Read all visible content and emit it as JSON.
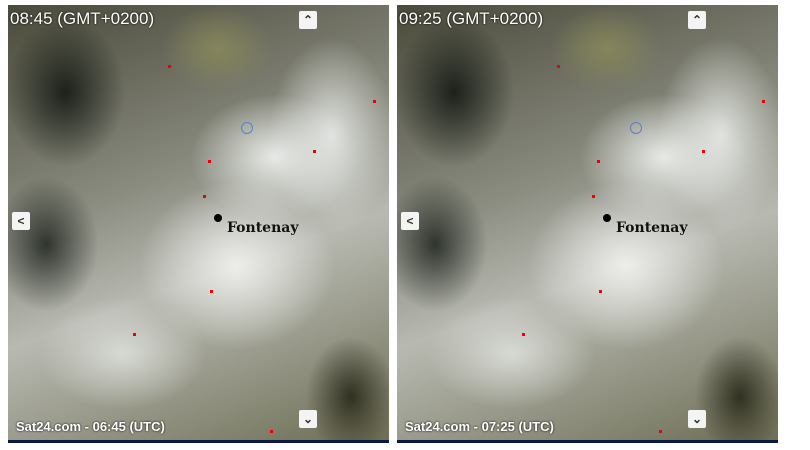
{
  "panels": [
    {
      "timestamp": "08:45 (GMT+0200)",
      "footer": "Sat24.com - 06:45 (UTC)",
      "city": "Fontenay"
    },
    {
      "timestamp": "09:25 (GMT+0200)",
      "footer": "Sat24.com - 07:25 (UTC)",
      "city": "Fontenay"
    }
  ],
  "icons": {
    "up": "chevron-up-icon",
    "down": "chevron-down-icon",
    "left": "chevron-left-icon"
  },
  "colors": {
    "city_marker": "#000000",
    "red_dots": "#ee0000",
    "bottom_border": "#0a1a45"
  }
}
